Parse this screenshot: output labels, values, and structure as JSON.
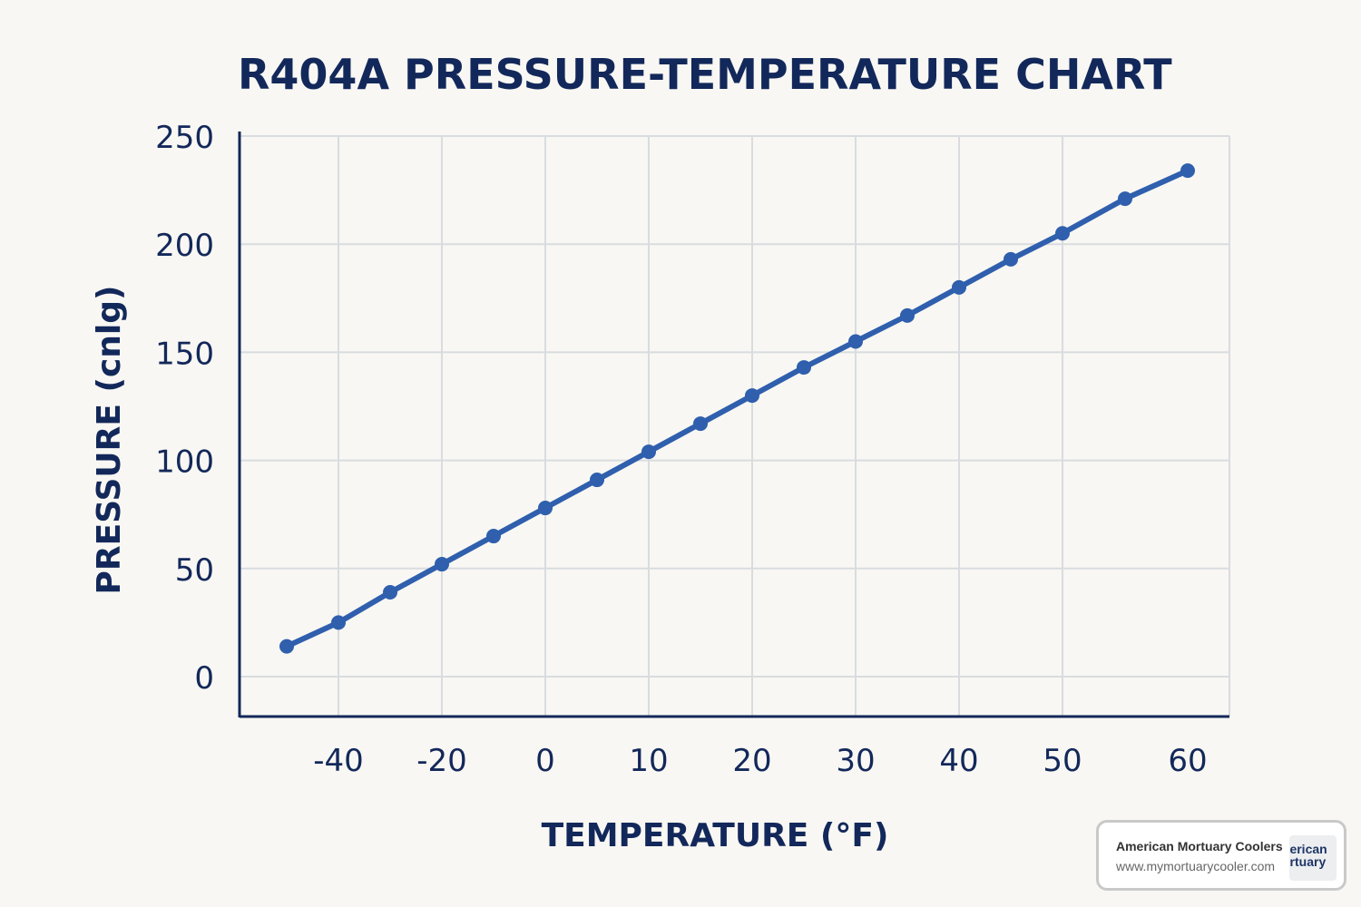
{
  "chart_data": {
    "type": "line",
    "title": "R404A PRESSURE-TEMPERATURE CHART",
    "xlabel": "TEMPERATURE (°F)",
    "ylabel": "PRESSURE (cnlg)",
    "x_ticks": [
      -40,
      -20,
      0,
      10,
      20,
      30,
      40,
      50,
      60
    ],
    "x_tick_labels": [
      "-40",
      "-20",
      "0",
      "10",
      "20",
      "30",
      "40",
      "50",
      "60"
    ],
    "y_ticks": [
      0,
      50,
      100,
      150,
      200,
      250
    ],
    "ylim": [
      0,
      250
    ],
    "grid": true,
    "line_color": "#2f5fad",
    "series": [
      {
        "x": [
          -50,
          -40,
          -30,
          -20,
          -10,
          0,
          5,
          10,
          15,
          20,
          25,
          30,
          35,
          40,
          45,
          50,
          55,
          60
        ],
        "y": [
          14,
          25,
          39,
          52,
          65,
          78,
          91,
          104,
          117,
          130,
          143,
          155,
          167,
          180,
          193,
          205,
          221,
          234
        ]
      }
    ]
  },
  "logo": {
    "name": "American Mortuary Coolers",
    "url": "www.mymortuarycooler.com",
    "mark_text": "American Mortuary"
  }
}
